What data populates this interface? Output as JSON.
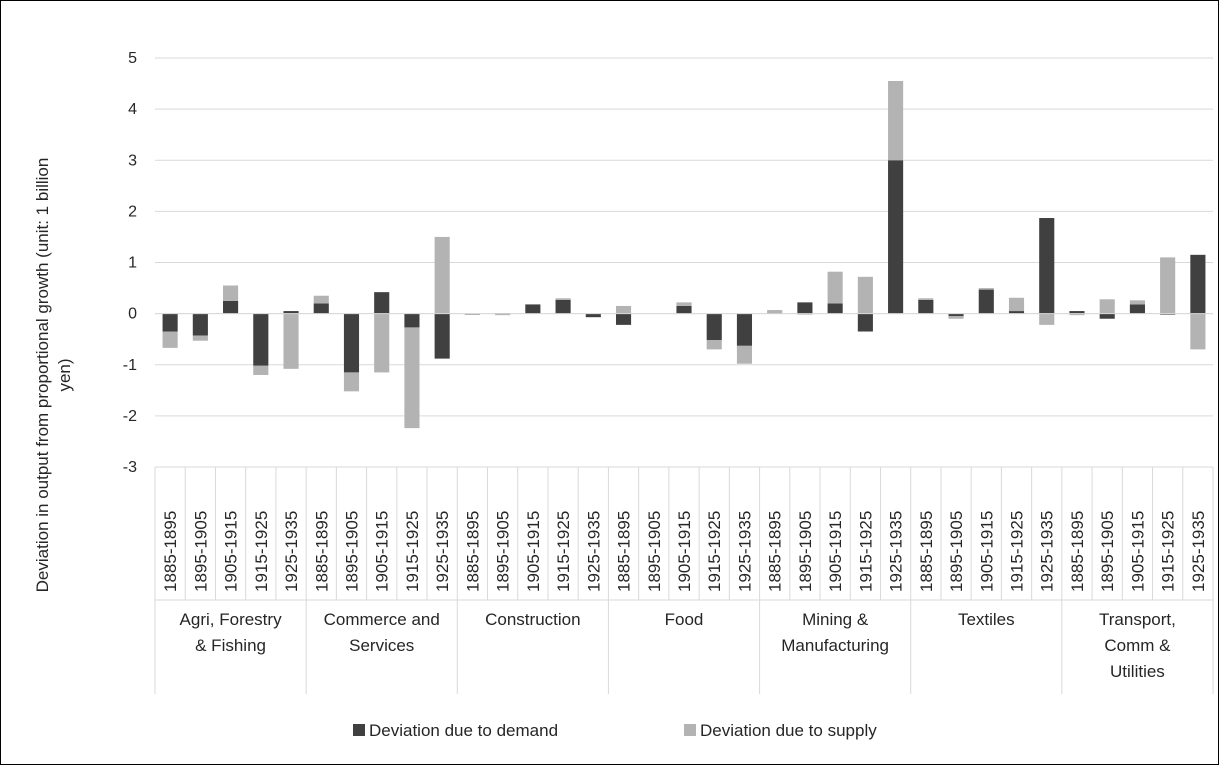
{
  "chart_data": {
    "type": "bar",
    "stacked": true,
    "ylabel": "Deviation in output from proportional growth (unit: 1 billion yen)",
    "ylabel_lines": [
      "Deviation in output from proportional growth (unit: 1 billion",
      "yen)"
    ],
    "ylim": [
      -3,
      5
    ],
    "yticks": [
      -3,
      -2,
      -1,
      0,
      1,
      2,
      3,
      4,
      5
    ],
    "grid": true,
    "legend_position": "bottom",
    "periods": [
      "1885-1895",
      "1895-1905",
      "1905-1915",
      "1915-1925",
      "1925-1935"
    ],
    "groups": [
      {
        "name": "Agri, Forestry & Fishing",
        "label_lines": [
          "Agri, Forestry",
          "& Fishing"
        ]
      },
      {
        "name": "Commerce and Services",
        "label_lines": [
          "Commerce and",
          "Services"
        ]
      },
      {
        "name": "Construction",
        "label_lines": [
          "Construction"
        ]
      },
      {
        "name": "Food",
        "label_lines": [
          "Food"
        ]
      },
      {
        "name": "Mining & Manufacturing",
        "label_lines": [
          "Mining &",
          "Manufacturing"
        ]
      },
      {
        "name": "Textiles",
        "label_lines": [
          "Textiles"
        ]
      },
      {
        "name": "Transport, Comm & Utilities",
        "label_lines": [
          "Transport,",
          "Comm &",
          "Utilities"
        ]
      }
    ],
    "series": [
      {
        "name": "Deviation due to demand",
        "color": "#404040",
        "values": [
          -0.35,
          -0.43,
          0.25,
          -1.02,
          0.05,
          0.2,
          -1.15,
          0.42,
          -0.27,
          -0.88,
          -0.01,
          0.01,
          0.18,
          0.27,
          -0.07,
          -0.22,
          0.0,
          0.15,
          -0.52,
          -0.63,
          0.01,
          0.22,
          0.2,
          -0.35,
          3.0,
          0.27,
          -0.05,
          0.47,
          0.05,
          1.87,
          0.05,
          -0.1,
          0.18,
          -0.02,
          1.15
        ]
      },
      {
        "name": "Deviation due to supply",
        "color": "#b3b3b3",
        "values": [
          -0.32,
          -0.1,
          0.3,
          -0.18,
          -1.08,
          0.15,
          -0.37,
          -1.15,
          -1.97,
          1.5,
          -0.01,
          -0.03,
          0.0,
          0.03,
          0.0,
          0.15,
          0.0,
          0.07,
          -0.18,
          -0.35,
          0.06,
          -0.02,
          0.62,
          0.72,
          1.55,
          0.03,
          -0.05,
          0.03,
          0.26,
          -0.22,
          -0.03,
          0.28,
          0.08,
          1.1,
          -0.7
        ]
      }
    ]
  }
}
